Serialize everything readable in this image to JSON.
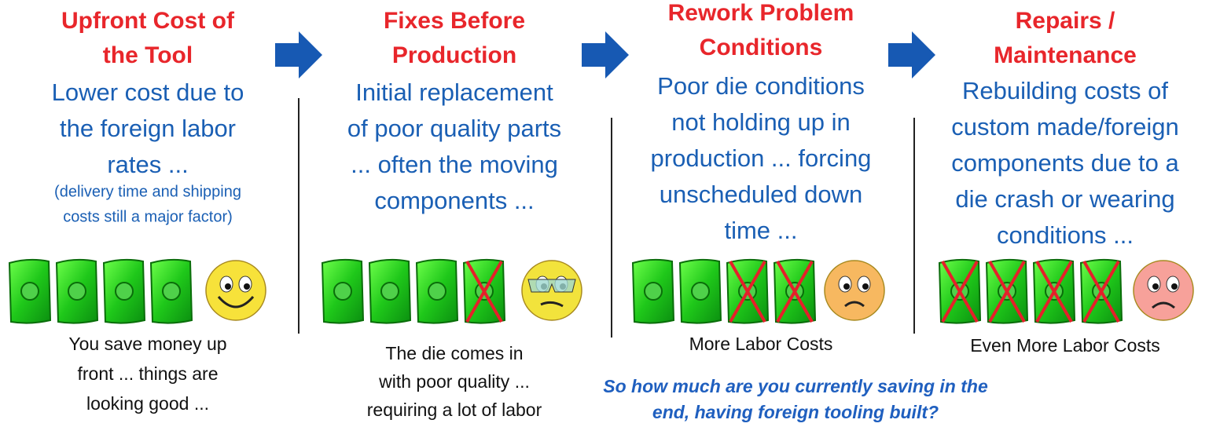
{
  "columns": [
    {
      "title": [
        "Upfront Cost of",
        "the Tool"
      ],
      "description": [
        "Lower cost due to",
        "the foreign labor",
        "rates ..."
      ],
      "note": [
        "(delivery time and shipping",
        "costs still a major factor)"
      ],
      "crossed": 0,
      "caption": [
        "You save money up",
        "front ... things are",
        "looking good ..."
      ]
    },
    {
      "title": [
        "Fixes Before",
        "Production"
      ],
      "description": [
        "Initial replacement",
        "of poor quality parts",
        "... often the moving",
        "components ..."
      ],
      "crossed": 1,
      "caption": [
        "The die comes in",
        "with poor quality ...",
        "requiring a lot of labor"
      ]
    },
    {
      "title": [
        "Rework Problem",
        "Conditions"
      ],
      "description": [
        "Poor die conditions",
        "not holding up in",
        "production ... forcing",
        "unscheduled down",
        "time ..."
      ],
      "crossed": 2,
      "caption": [
        "More Labor Costs"
      ]
    },
    {
      "title": [
        "Repairs /",
        "Maintenance"
      ],
      "description": [
        "Rebuilding costs of",
        "custom made/foreign",
        "components due to a",
        "die crash or wearing",
        "conditions ..."
      ],
      "crossed": 4,
      "caption": [
        "Even More Labor Costs"
      ]
    }
  ],
  "question": [
    "So how much are you currently saving in the",
    "end, having foreign tooling built?"
  ]
}
